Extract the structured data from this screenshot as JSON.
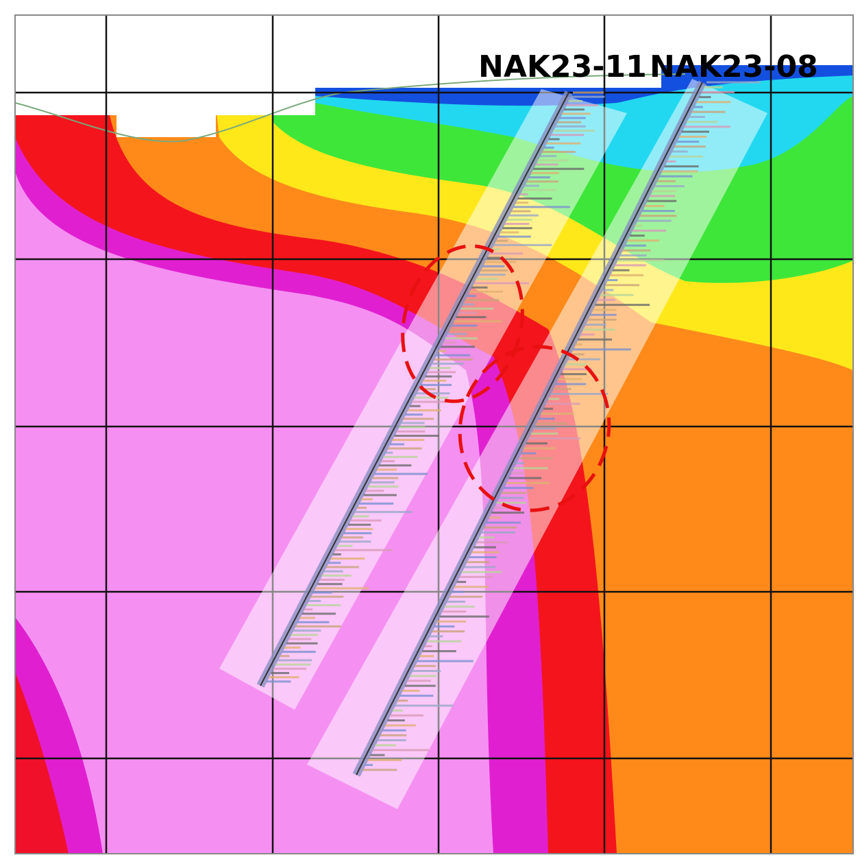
{
  "labels": {
    "drill_holes": [
      "NAK23-11",
      "NAK23-08"
    ]
  }
}
